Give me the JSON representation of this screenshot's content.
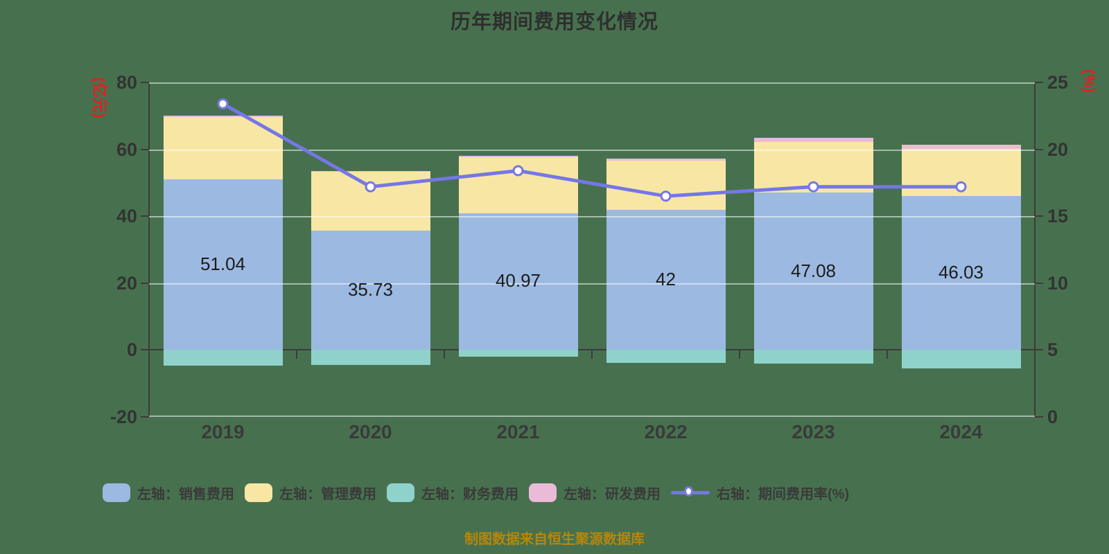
{
  "title": "历年期间费用变化情况",
  "footer": {
    "text": "制图数据来自恒生聚源数据库",
    "color": "#B8860B"
  },
  "colors": {
    "background": "#47714E",
    "axis": "#3b3b3b",
    "grid": "rgba(255,255,255,0.52)",
    "text": "#333333",
    "axis_name_red": "#E02020"
  },
  "legend": {
    "items": [
      {
        "label": "左轴：销售费用",
        "type": "rect",
        "color": "#9CB9E1"
      },
      {
        "label": "左轴：管理费用",
        "type": "rect",
        "color": "#F8E7A4"
      },
      {
        "label": "左轴：财务费用",
        "type": "rect",
        "color": "#8FD2CB"
      },
      {
        "label": "左轴：研发费用",
        "type": "rect",
        "color": "#E9BBD8"
      },
      {
        "label": "右轴：期间费用率(%)",
        "type": "line",
        "color": "#7577E6"
      }
    ]
  },
  "chart_data": {
    "type": "bar",
    "subtype": "stacked-bar-with-line",
    "title": "历年期间费用变化情况",
    "categories": [
      "2019",
      "2020",
      "2021",
      "2022",
      "2023",
      "2024"
    ],
    "left_axis": {
      "name": "(亿元)",
      "min": -20,
      "max": 80,
      "ticks": [
        80,
        60,
        40,
        20,
        0,
        -20
      ]
    },
    "right_axis": {
      "name": "(%)",
      "min": 0,
      "max": 25,
      "ticks": [
        25,
        20,
        15,
        10,
        5,
        0
      ]
    },
    "grid": true,
    "legend_position": "bottom",
    "series": [
      {
        "name": "左轴：销售费用",
        "type": "bar",
        "stack": "total",
        "color": "#9CB9E1",
        "values": [
          51.04,
          35.73,
          40.97,
          42,
          47.08,
          46.03
        ],
        "labels": [
          "51.04",
          "35.73",
          "40.97",
          "42",
          "47.08",
          "46.03"
        ]
      },
      {
        "name": "左轴：管理费用",
        "type": "bar",
        "stack": "total",
        "color": "#F8E7A4",
        "values": [
          18.7,
          17.5,
          16.7,
          14.7,
          15.1,
          14.1
        ]
      },
      {
        "name": "左轴：财务费用",
        "type": "bar",
        "stack": "total",
        "color": "#8FD2CB",
        "values": [
          -4.6,
          -4.5,
          -2.0,
          -3.8,
          -4.0,
          -5.5
        ]
      },
      {
        "name": "左轴：研发费用",
        "type": "bar",
        "stack": "total",
        "color": "#E9BBD8",
        "values": [
          0.3,
          0.3,
          0.4,
          0.6,
          1.2,
          1.2
        ]
      },
      {
        "name": "右轴：期间费用率(%)",
        "type": "line",
        "axis": "right",
        "color": "#7577E6",
        "marker": "circle",
        "values": [
          23.4,
          17.2,
          18.4,
          16.5,
          17.2,
          17.2
        ]
      }
    ]
  }
}
